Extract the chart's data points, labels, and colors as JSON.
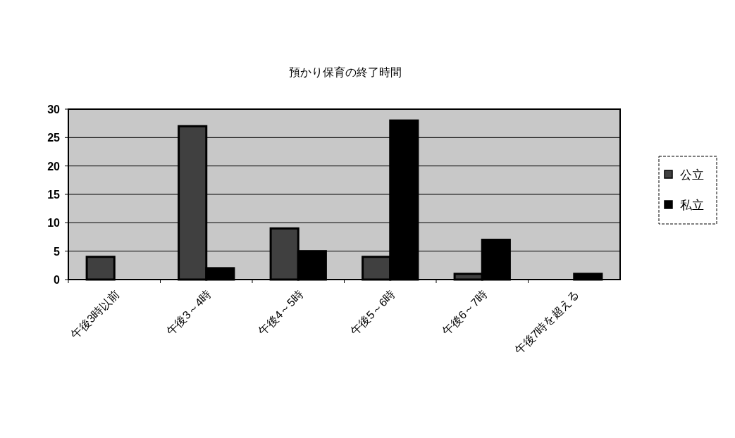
{
  "chart_data": {
    "type": "bar",
    "title": "預かり保育の終了時間",
    "categories": [
      "午後3時以前",
      "午後3～4時",
      "午後4～5時",
      "午後5～6時",
      "午後6～7時",
      "午後7時を超える"
    ],
    "series": [
      {
        "name": "公立",
        "color": "#404040",
        "values": [
          4,
          27,
          9,
          4,
          1,
          0
        ]
      },
      {
        "name": "私立",
        "color": "#000000",
        "values": [
          0,
          2,
          5,
          28,
          7,
          1
        ]
      }
    ],
    "ylim": [
      0,
      30
    ],
    "yticks": [
      0,
      5,
      10,
      15,
      20,
      25,
      30
    ],
    "grid": "y",
    "legend": "right"
  }
}
